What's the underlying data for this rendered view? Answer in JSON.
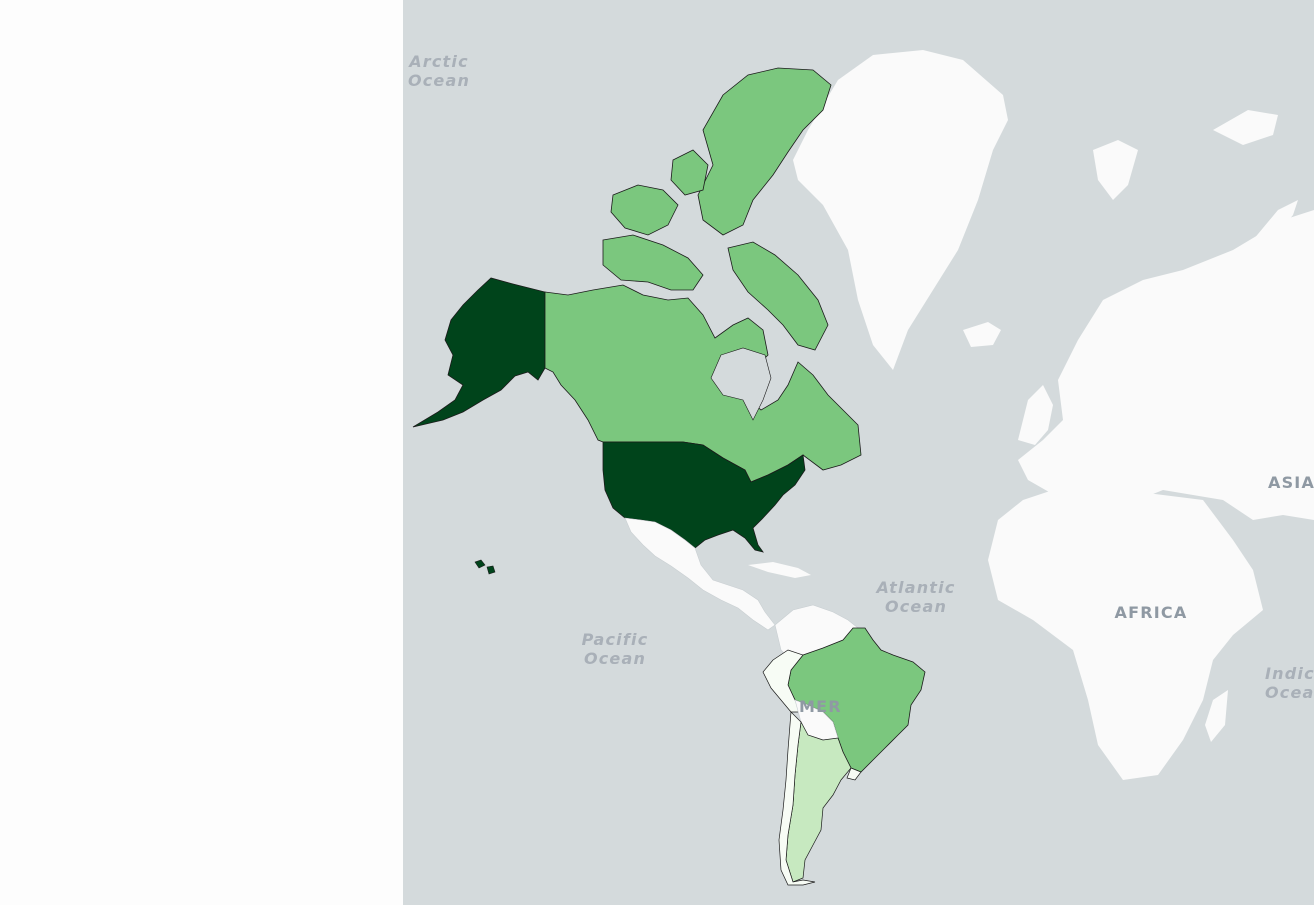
{
  "map": {
    "labels": {
      "arctic_ocean": [
        "Arctic",
        "Ocean"
      ],
      "atlantic_ocean": [
        "Atlantic",
        "Ocean"
      ],
      "pacific_ocean": [
        "Pacific",
        "Ocean"
      ],
      "indian_ocean": [
        "Indic",
        "Ocea"
      ],
      "africa": "AFRICA",
      "asia": "ASIA",
      "america_fragment": "MER"
    },
    "choropleth": {
      "palette": [
        "#f7fcf5",
        "#c7e9c0",
        "#7bc77e",
        "#00441b"
      ],
      "regions": [
        {
          "name": "United States",
          "level": 3
        },
        {
          "name": "Canada",
          "level": 2
        },
        {
          "name": "Brazil",
          "level": 2
        },
        {
          "name": "Argentina",
          "level": 1
        },
        {
          "name": "Peru",
          "level": 0
        },
        {
          "name": "Chile",
          "level": 0
        },
        {
          "name": "Uruguay",
          "level": 0
        }
      ]
    },
    "colors": {
      "ocean": "#d4dadc",
      "land": "#fafafa",
      "outline": "#1b1b1b"
    }
  }
}
